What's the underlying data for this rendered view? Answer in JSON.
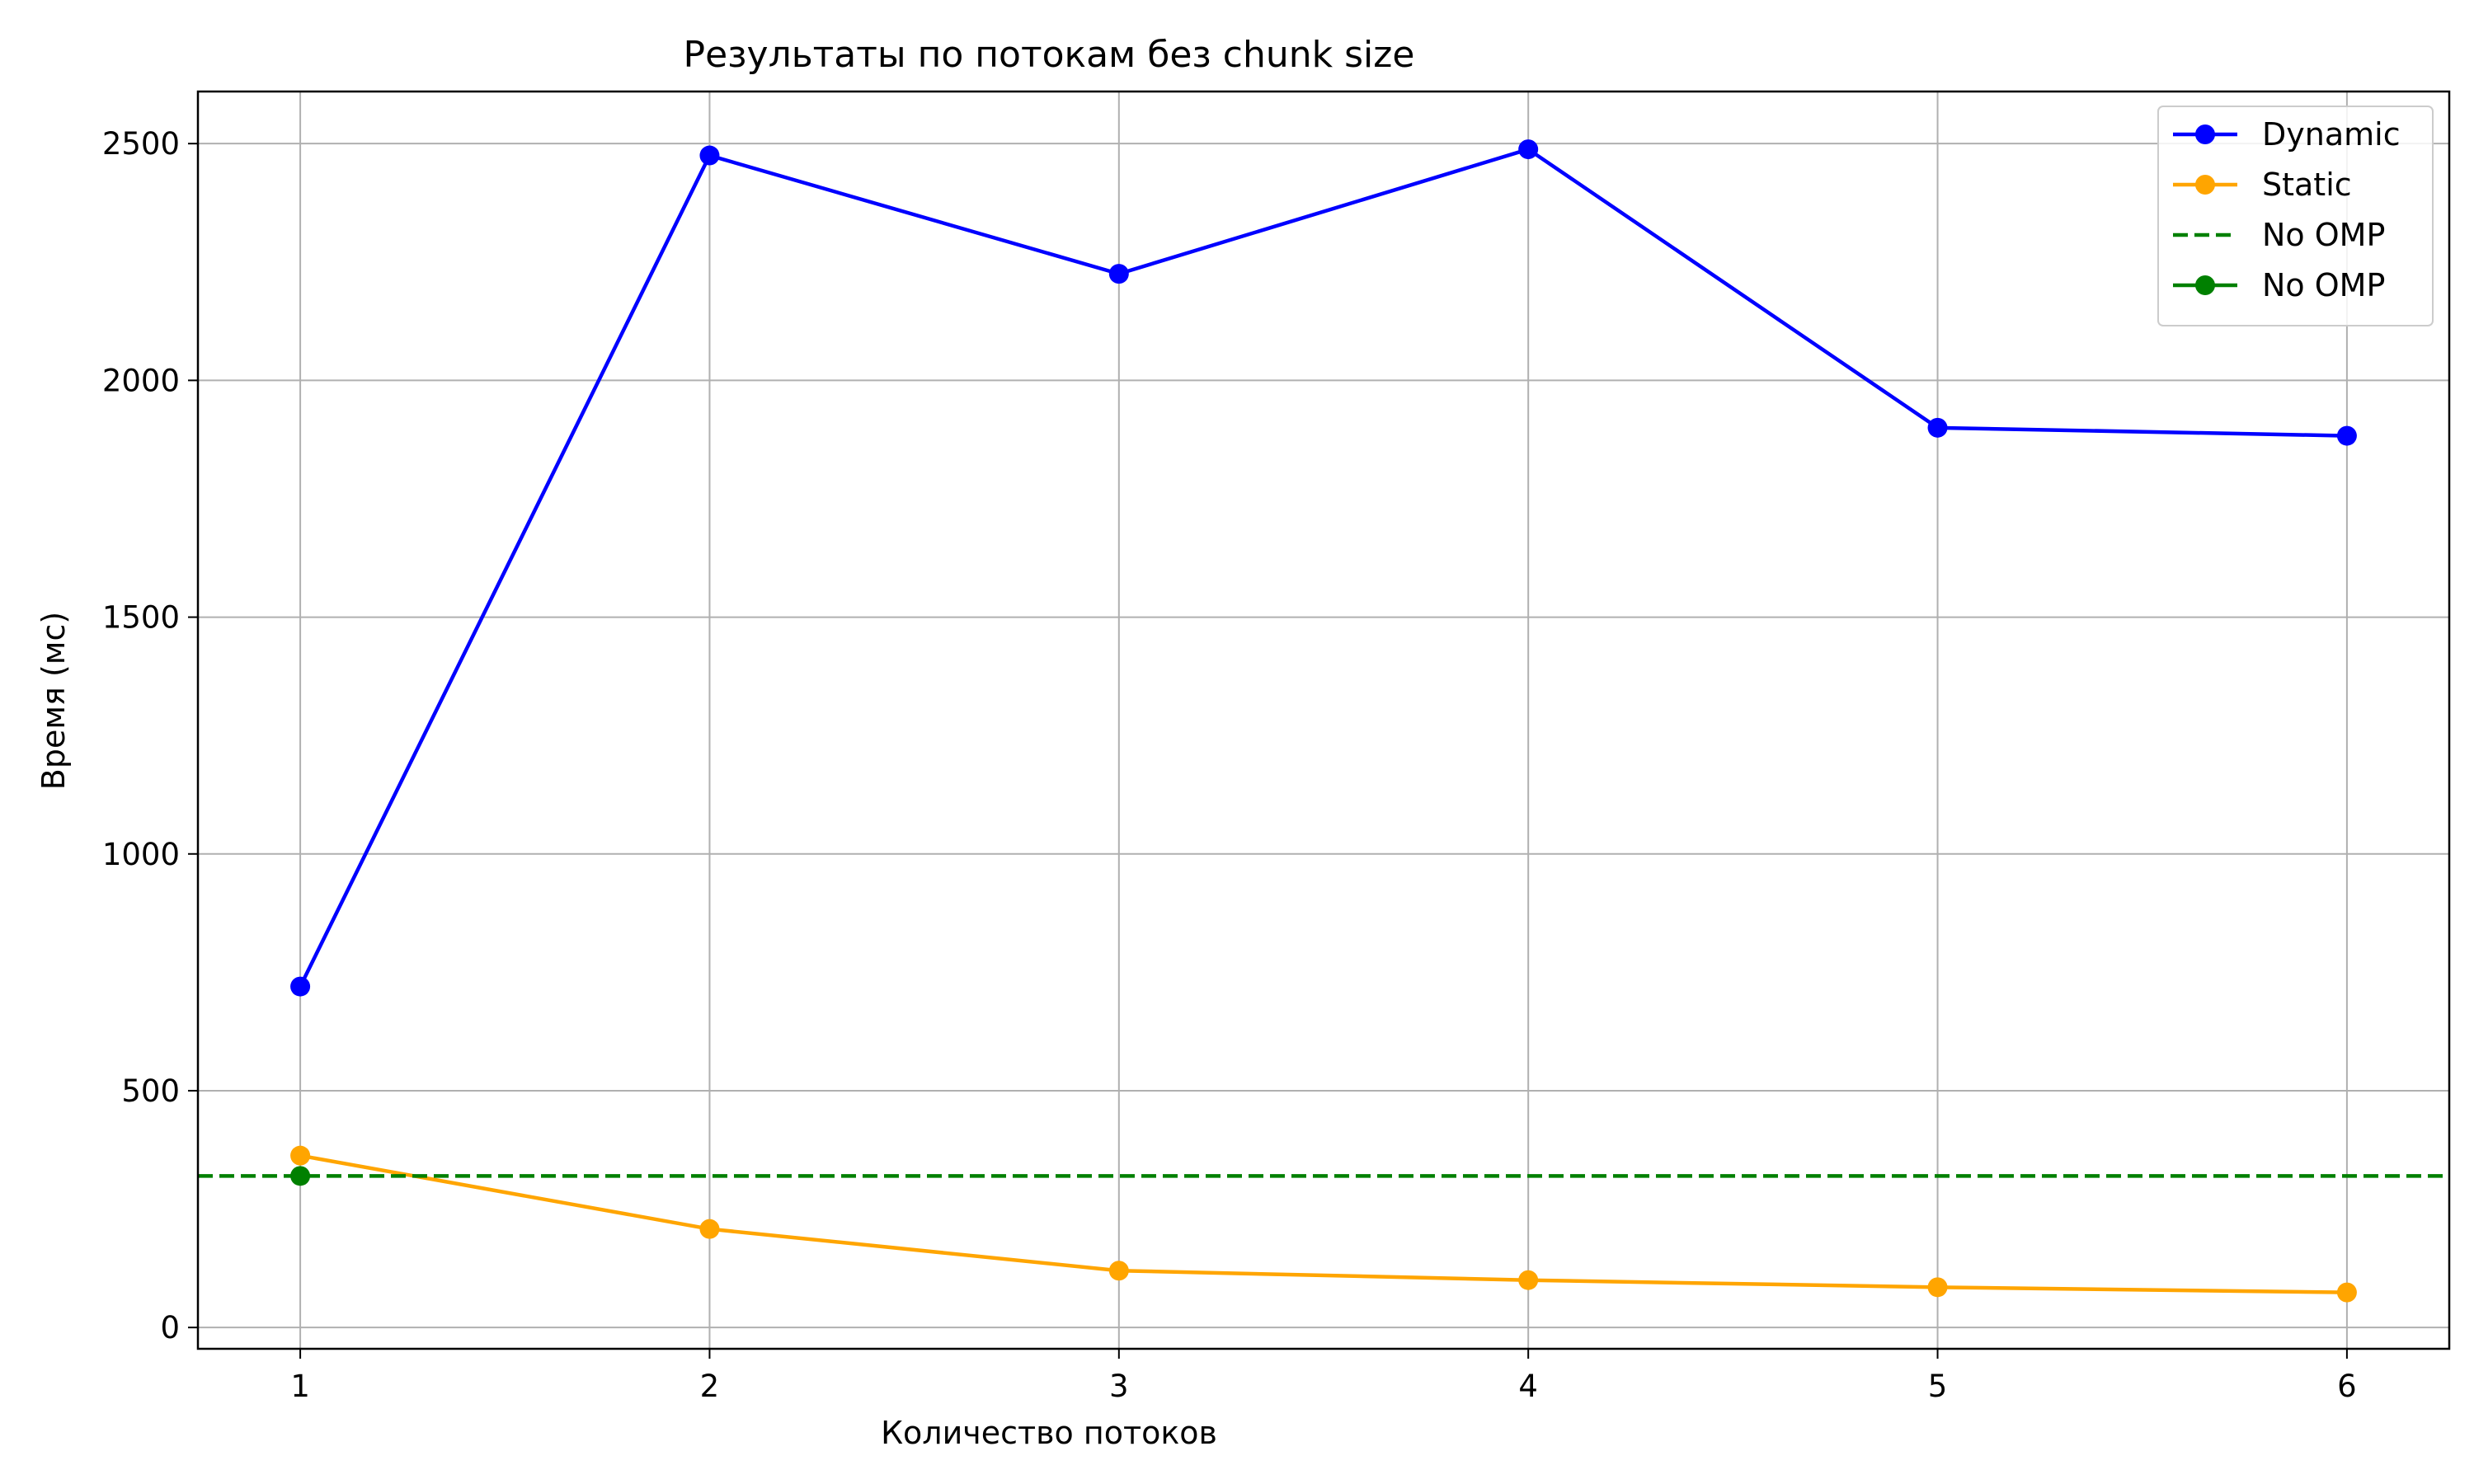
{
  "chart_data": {
    "type": "line",
    "title": "Результаты по потокам без chunk size",
    "xlabel": "Количество потоков",
    "ylabel": "Время (мс)",
    "x": [
      1,
      2,
      3,
      4,
      5,
      6
    ],
    "x_ticks": [
      "1",
      "2",
      "3",
      "4",
      "5",
      "6"
    ],
    "xlim": [
      0.75,
      6.25
    ],
    "ylim": [
      -45,
      2610
    ],
    "y_ticks": [
      0,
      500,
      1000,
      1500,
      2000,
      2500
    ],
    "y_tick_labels": [
      "0",
      "500",
      "1000",
      "1500",
      "2000",
      "2500"
    ],
    "grid": true,
    "legend_position": "top-right",
    "series": [
      {
        "name": "Dynamic",
        "color": "#0000ff",
        "style": "solid-marker",
        "values": [
          720,
          2475,
          2225,
          2488,
          1900,
          1883
        ]
      },
      {
        "name": "Static",
        "color": "#ffa500",
        "style": "solid-marker",
        "values": [
          363,
          208,
          120,
          100,
          85,
          74
        ]
      },
      {
        "name": "No OMP",
        "color": "#008000",
        "style": "dashed-hline",
        "value": 320
      },
      {
        "name": "No OMP",
        "color": "#008000",
        "style": "solid-marker",
        "points": [
          [
            1,
            320
          ]
        ]
      }
    ]
  }
}
